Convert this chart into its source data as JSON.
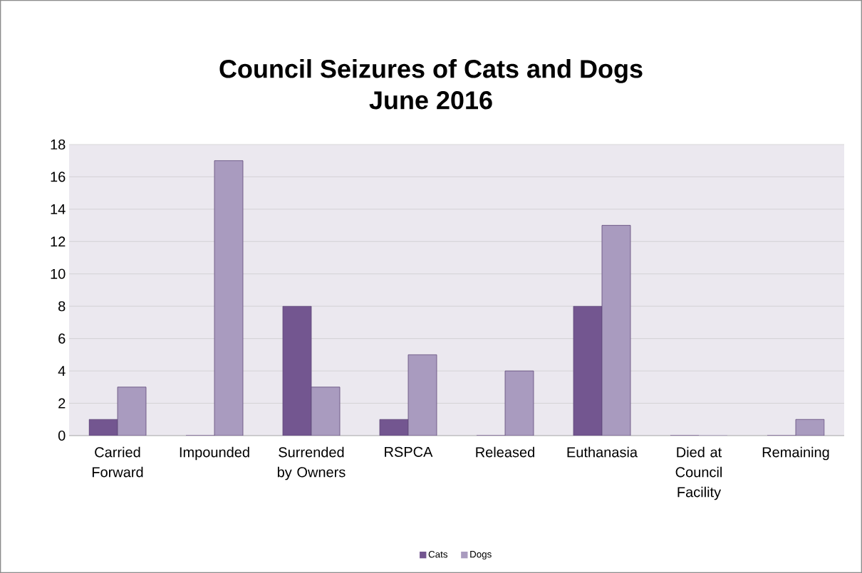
{
  "chart_data": {
    "type": "bar",
    "title": "Council Seizures of Cats and Dogs",
    "subtitle": "June 2016",
    "categories": [
      "Carried Forward",
      "Impounded",
      "Surrended by Owners",
      "RSPCA",
      "Released",
      "Euthanasia",
      "Died at Council Facility",
      "Remaining"
    ],
    "series": [
      {
        "name": "Cats",
        "color": "#735690",
        "values": [
          1,
          0,
          8,
          1,
          0,
          8,
          0,
          0
        ]
      },
      {
        "name": "Dogs",
        "color": "#a99bbf",
        "values": [
          3,
          17,
          3,
          5,
          4,
          13,
          0,
          1
        ]
      }
    ],
    "ylim": [
      0,
      18
    ],
    "yticks": [
      0,
      2,
      4,
      6,
      8,
      10,
      12,
      14,
      16,
      18
    ],
    "grid": "y",
    "legend": "bottom"
  }
}
